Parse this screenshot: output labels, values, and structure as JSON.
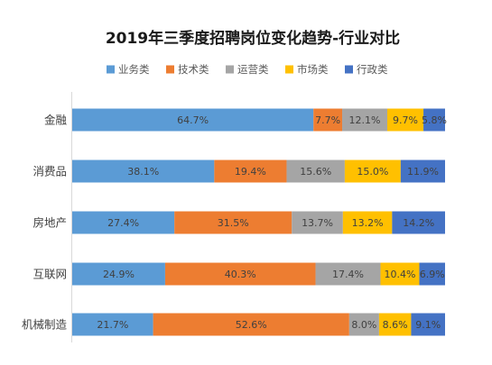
{
  "chart_data": {
    "type": "bar",
    "orientation": "horizontal",
    "stacked": true,
    "percent_stacked": true,
    "title": "2019年三季度招聘岗位变化趋势-行业对比",
    "categories": [
      "金融",
      "消费品",
      "房地产",
      "互联网",
      "机械制造"
    ],
    "series": [
      {
        "name": "业务类",
        "color": "#5B9BD5",
        "values": [
          64.7,
          38.1,
          27.4,
          24.9,
          21.7
        ],
        "labels": [
          "64.7%",
          "38.1%",
          "27.4%",
          "24.9%",
          "21.7%"
        ]
      },
      {
        "name": "技术类",
        "color": "#ED7D31",
        "values": [
          7.7,
          19.4,
          31.5,
          40.3,
          52.6
        ],
        "labels": [
          "7.7%",
          "19.4%",
          "31.5%",
          "40.3%",
          "52.6%"
        ]
      },
      {
        "name": "运营类",
        "color": "#A5A5A5",
        "values": [
          12.1,
          15.6,
          13.7,
          17.4,
          8.0
        ],
        "labels": [
          "12.1%",
          "15.6%",
          "13.7%",
          "17.4%",
          "8.0%"
        ]
      },
      {
        "name": "市场类",
        "color": "#FFC000",
        "values": [
          9.7,
          15.0,
          13.2,
          10.4,
          8.6
        ],
        "labels": [
          "9.7%",
          "15.0%",
          "13.2%",
          "10.4%",
          "8.6%"
        ]
      },
      {
        "name": "行政类",
        "color": "#4472C4",
        "values": [
          5.8,
          11.9,
          14.2,
          6.9,
          9.1
        ],
        "labels": [
          "5.8%",
          "11.9%",
          "14.2%",
          "6.9%",
          "9.1%"
        ]
      }
    ],
    "legend_position": "top",
    "grid": false,
    "xlim": [
      0,
      100
    ]
  }
}
